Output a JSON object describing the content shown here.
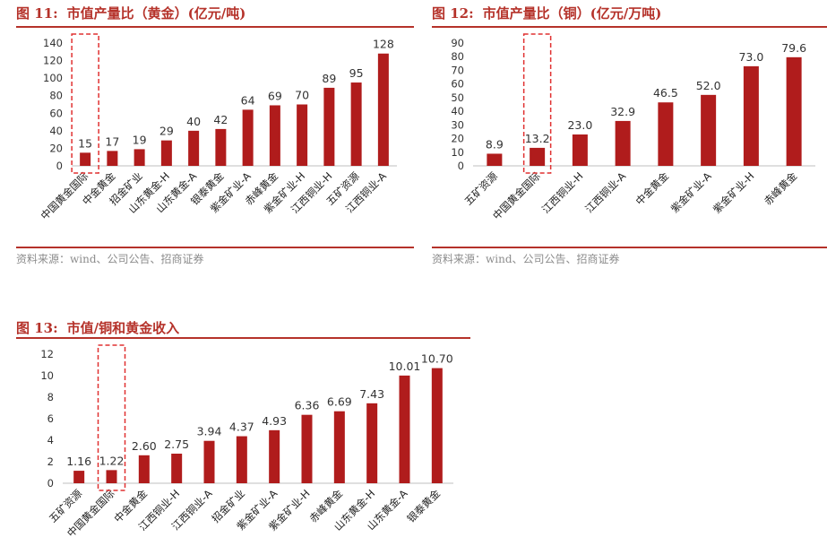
{
  "chart_data": [
    {
      "type": "bar",
      "fig_num": "图 11:",
      "title": "市值产量比（黄金）(亿元/吨)",
      "categories": [
        "中国黄金国际",
        "中金黄金",
        "招金矿业",
        "山东黄金-H",
        "山东黄金-A",
        "银泰黄金",
        "紫金矿业-A",
        "赤峰黄金",
        "紫金矿业-H",
        "江西铜业-H",
        "五矿资源",
        "江西铜业-A"
      ],
      "values": [
        15,
        17,
        19,
        29,
        40,
        42,
        64,
        69,
        70,
        89,
        95,
        128
      ],
      "value_labels": [
        "15",
        "17",
        "19",
        "29",
        "40",
        "42",
        "64",
        "69",
        "70",
        "89",
        "95",
        "128"
      ],
      "yticks": [
        "0",
        "20",
        "40",
        "60",
        "80",
        "100",
        "120",
        "140"
      ],
      "ylim": [
        0,
        140
      ],
      "highlight_index": 0,
      "bar_color": "#b01c1c",
      "source": "资料来源：wind、公司公告、招商证券",
      "grid": false
    },
    {
      "type": "bar",
      "fig_num": "图 12:",
      "title": "市值产量比（铜）(亿元/万吨)",
      "categories": [
        "五矿资源",
        "中国黄金国际",
        "江西铜业-H",
        "江西铜业-A",
        "中金黄金",
        "紫金矿业-A",
        "紫金矿业-H",
        "赤峰黄金"
      ],
      "values": [
        8.9,
        13.2,
        23.0,
        32.9,
        46.5,
        52.0,
        73.0,
        79.6
      ],
      "value_labels": [
        "8.9",
        "13.2",
        "23.0",
        "32.9",
        "46.5",
        "52.0",
        "73.0",
        "79.6"
      ],
      "yticks": [
        "0",
        "10",
        "20",
        "30",
        "40",
        "50",
        "60",
        "70",
        "80",
        "90"
      ],
      "ylim": [
        0,
        90
      ],
      "highlight_index": 1,
      "bar_color": "#b01c1c",
      "source": "资料来源：wind、公司公告、招商证券",
      "grid": false
    },
    {
      "type": "bar",
      "fig_num": "图 13:",
      "title": "市值/铜和黄金收入",
      "categories": [
        "五矿资源",
        "中国黄金国际",
        "中金黄金",
        "江西铜业-H",
        "江西铜业-A",
        "招金矿业",
        "紫金矿业-A",
        "紫金矿业-H",
        "赤峰黄金",
        "山东黄金-H",
        "山东黄金-A",
        "银泰黄金"
      ],
      "values": [
        1.16,
        1.22,
        2.6,
        2.75,
        3.94,
        4.37,
        4.93,
        6.36,
        6.69,
        7.43,
        10.01,
        10.7
      ],
      "value_labels": [
        "1.16",
        "1.22",
        "2.60",
        "2.75",
        "3.94",
        "4.37",
        "4.93",
        "6.36",
        "6.69",
        "7.43",
        "10.01",
        "10.70"
      ],
      "yticks": [
        "0",
        "2",
        "4",
        "6",
        "8",
        "10",
        "12"
      ],
      "ylim": [
        0,
        12
      ],
      "highlight_index": 1,
      "bar_color": "#b01c1c",
      "grid": false
    }
  ],
  "colors": {
    "accent": "#b5322a",
    "bar": "#b01c1c",
    "highlight_box": "#e03030",
    "source_text": "#8c8c8c"
  }
}
